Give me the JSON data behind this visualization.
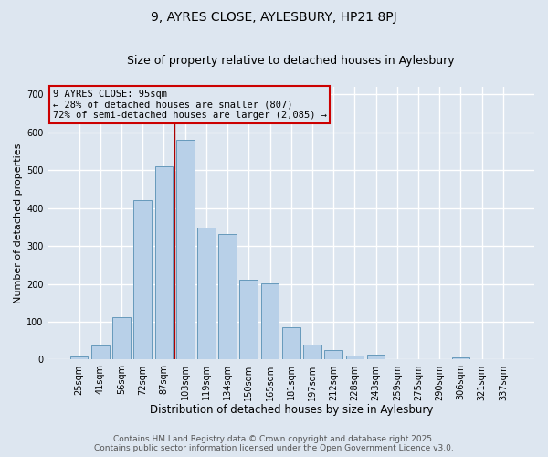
{
  "title1": "9, AYRES CLOSE, AYLESBURY, HP21 8PJ",
  "title2": "Size of property relative to detached houses in Aylesbury",
  "xlabel": "Distribution of detached houses by size in Aylesbury",
  "ylabel": "Number of detached properties",
  "categories": [
    "25sqm",
    "41sqm",
    "56sqm",
    "72sqm",
    "87sqm",
    "103sqm",
    "119sqm",
    "134sqm",
    "150sqm",
    "165sqm",
    "181sqm",
    "197sqm",
    "212sqm",
    "228sqm",
    "243sqm",
    "259sqm",
    "275sqm",
    "290sqm",
    "306sqm",
    "321sqm",
    "337sqm"
  ],
  "values": [
    8,
    38,
    112,
    420,
    510,
    580,
    348,
    332,
    210,
    202,
    85,
    40,
    25,
    10,
    14,
    0,
    0,
    0,
    5,
    0,
    0
  ],
  "bar_color": "#b8d0e8",
  "bar_edge_color": "#6699bb",
  "background_color": "#dde6f0",
  "grid_color": "#ffffff",
  "vline_x": 4.5,
  "vline_color": "#aa0000",
  "annotation_title": "9 AYRES CLOSE: 95sqm",
  "annotation_line1": "← 28% of detached houses are smaller (807)",
  "annotation_line2": "72% of semi-detached houses are larger (2,085) →",
  "annotation_box_edgecolor": "#cc0000",
  "annotation_box_facecolor": "#dde6f0",
  "ylim": [
    0,
    720
  ],
  "yticks": [
    0,
    100,
    200,
    300,
    400,
    500,
    600,
    700
  ],
  "footer1": "Contains HM Land Registry data © Crown copyright and database right 2025.",
  "footer2": "Contains public sector information licensed under the Open Government Licence v3.0.",
  "title1_fontsize": 10,
  "title2_fontsize": 9,
  "xlabel_fontsize": 8.5,
  "ylabel_fontsize": 8,
  "tick_fontsize": 7,
  "annotation_fontsize": 7.5,
  "footer_fontsize": 6.5
}
